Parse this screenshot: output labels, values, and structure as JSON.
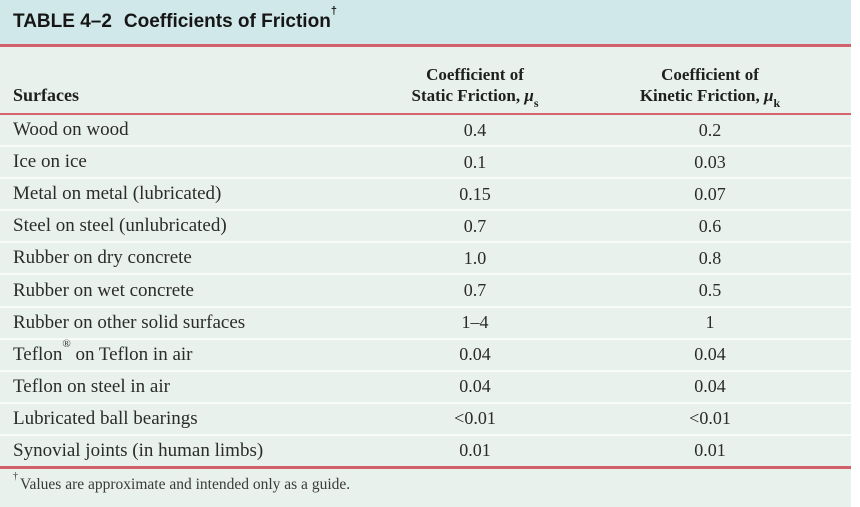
{
  "table": {
    "label": "TABLE 4–2",
    "title": "Coefficients of Friction",
    "title_dagger": "†",
    "header": {
      "surfaces": "Surfaces",
      "static_col": {
        "line1": "Coefficient of",
        "line2": "Static Friction, ",
        "mu": "μ",
        "sub": "s"
      },
      "kinetic_col": {
        "line1": "Coefficient of",
        "line2": "Kinetic Friction, ",
        "mu": "μ",
        "sub": "k"
      }
    },
    "rows": [
      {
        "surface": "Wood on wood",
        "sup": "",
        "surface_rest": "",
        "static": "0.4",
        "kinetic": "0.2"
      },
      {
        "surface": "Ice on ice",
        "sup": "",
        "surface_rest": "",
        "static": "0.1",
        "kinetic": "0.03"
      },
      {
        "surface": "Metal on metal (lubricated)",
        "sup": "",
        "surface_rest": "",
        "static": "0.15",
        "kinetic": "0.07"
      },
      {
        "surface": "Steel on steel (unlubricated)",
        "sup": "",
        "surface_rest": "",
        "static": "0.7",
        "kinetic": "0.6"
      },
      {
        "surface": "Rubber on dry concrete",
        "sup": "",
        "surface_rest": "",
        "static": "1.0",
        "kinetic": "0.8"
      },
      {
        "surface": "Rubber on wet concrete",
        "sup": "",
        "surface_rest": "",
        "static": "0.7",
        "kinetic": "0.5"
      },
      {
        "surface": "Rubber on other solid surfaces",
        "sup": "",
        "surface_rest": "",
        "static": "1–4",
        "kinetic": "1"
      },
      {
        "surface": "Teflon",
        "sup": "®",
        "surface_rest": " on Teflon in air",
        "static": "0.04",
        "kinetic": "0.04"
      },
      {
        "surface": "Teflon on steel in air",
        "sup": "",
        "surface_rest": "",
        "static": "0.04",
        "kinetic": "0.04"
      },
      {
        "surface": "Lubricated ball bearings",
        "sup": "",
        "surface_rest": "",
        "static": "<0.01",
        "kinetic": "<0.01"
      },
      {
        "surface": "Synovial joints (in human limbs)",
        "sup": "",
        "surface_rest": "",
        "static": "0.01",
        "kinetic": "0.01"
      }
    ],
    "footnote": {
      "dagger": "†",
      "text": "Values are approximate and intended only as a guide."
    }
  },
  "colors": {
    "title_bar_bg": "#d0e8ea",
    "body_bg": "#e9f1ec",
    "rule_red": "#d2606a",
    "row_separator": "#f8fbf9",
    "text": "#2b2b2b"
  }
}
